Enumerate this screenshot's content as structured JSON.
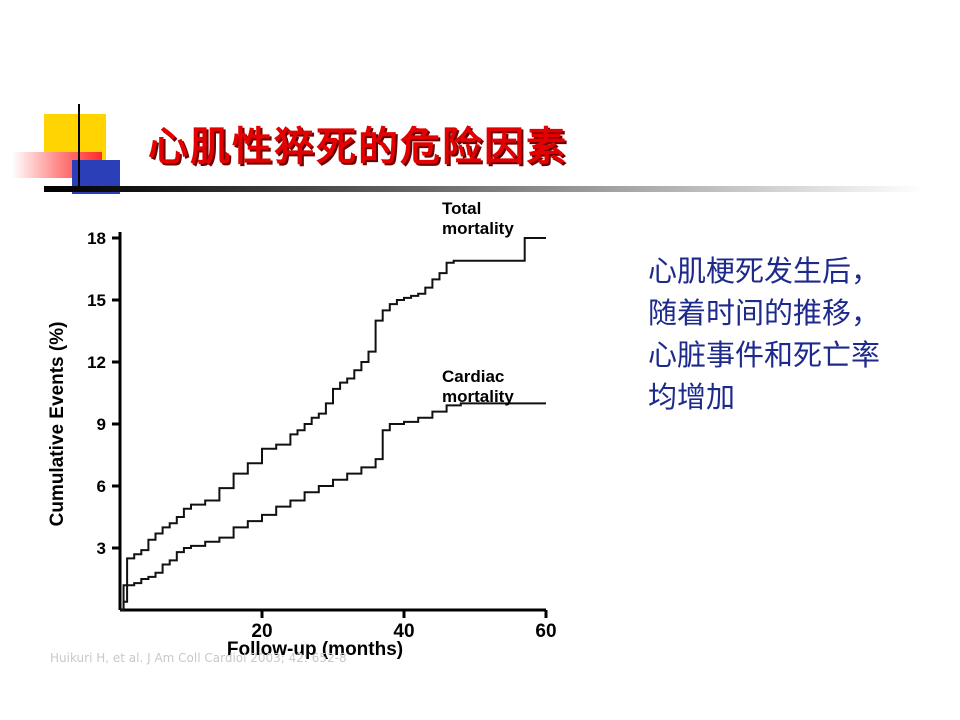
{
  "slide": {
    "title": "心肌性猝死的危险因素",
    "side_text": "心肌梗死发生后，随着时间的推移，心脏事件和死亡率均增加",
    "citation": "Huikuri H, et al. J Am Coll Cardiol 2003; 42: 652-8"
  },
  "colors": {
    "title_red": "#e40000",
    "side_text_blue": "#1d2a8c",
    "deco_yellow": "#ffd400",
    "deco_blue": "#2b3fb8",
    "deco_red": "#ff2a2a"
  },
  "chart_data": {
    "type": "line",
    "title": "",
    "xlabel": "Follow-up (months)",
    "ylabel": "Cumulative Events (%)",
    "xlim": [
      0,
      60
    ],
    "ylim": [
      0,
      18
    ],
    "x_ticks": [
      20,
      40,
      60
    ],
    "y_ticks": [
      3,
      6,
      9,
      12,
      15,
      18
    ],
    "step": true,
    "grid": false,
    "series": [
      {
        "name": "Total mortality",
        "x": [
          0,
          0.5,
          1,
          2,
          3,
          4,
          5,
          6,
          7,
          8,
          9,
          10,
          12,
          14,
          16,
          18,
          20,
          22,
          24,
          25,
          26,
          27,
          28,
          29,
          30,
          31,
          32,
          33,
          34,
          35,
          36,
          37,
          38,
          39,
          40,
          41,
          42,
          43,
          44,
          45,
          46,
          47,
          48,
          50,
          52,
          54,
          56,
          57,
          58,
          60
        ],
        "y": [
          0,
          1.2,
          2.5,
          2.7,
          2.9,
          3.4,
          3.7,
          4.0,
          4.2,
          4.5,
          4.9,
          5.1,
          5.3,
          5.9,
          6.6,
          7.1,
          7.8,
          8.0,
          8.5,
          8.7,
          9.0,
          9.3,
          9.5,
          10.0,
          10.7,
          11.0,
          11.2,
          11.6,
          12.0,
          12.5,
          14.0,
          14.5,
          14.8,
          15.0,
          15.1,
          15.2,
          15.3,
          15.6,
          16.0,
          16.3,
          16.8,
          16.9,
          16.9,
          16.9,
          16.9,
          16.9,
          16.9,
          18.0,
          18.0,
          18.0
        ]
      },
      {
        "name": "Cardiac mortality",
        "x": [
          0,
          0.5,
          1,
          2,
          3,
          4,
          5,
          6,
          7,
          8,
          9,
          10,
          12,
          14,
          16,
          18,
          20,
          22,
          24,
          26,
          28,
          30,
          32,
          34,
          36,
          37,
          38,
          40,
          42,
          44,
          46,
          48,
          50,
          52,
          54,
          56,
          58,
          60
        ],
        "y": [
          0,
          0.4,
          1.2,
          1.3,
          1.5,
          1.6,
          1.8,
          2.2,
          2.4,
          2.8,
          3.0,
          3.1,
          3.3,
          3.5,
          4.0,
          4.3,
          4.6,
          5.0,
          5.3,
          5.7,
          6.0,
          6.3,
          6.6,
          6.9,
          7.3,
          8.7,
          9.0,
          9.1,
          9.3,
          9.6,
          9.9,
          10.0,
          10.0,
          10.0,
          10.0,
          10.0,
          10.0,
          10.0
        ]
      }
    ]
  }
}
